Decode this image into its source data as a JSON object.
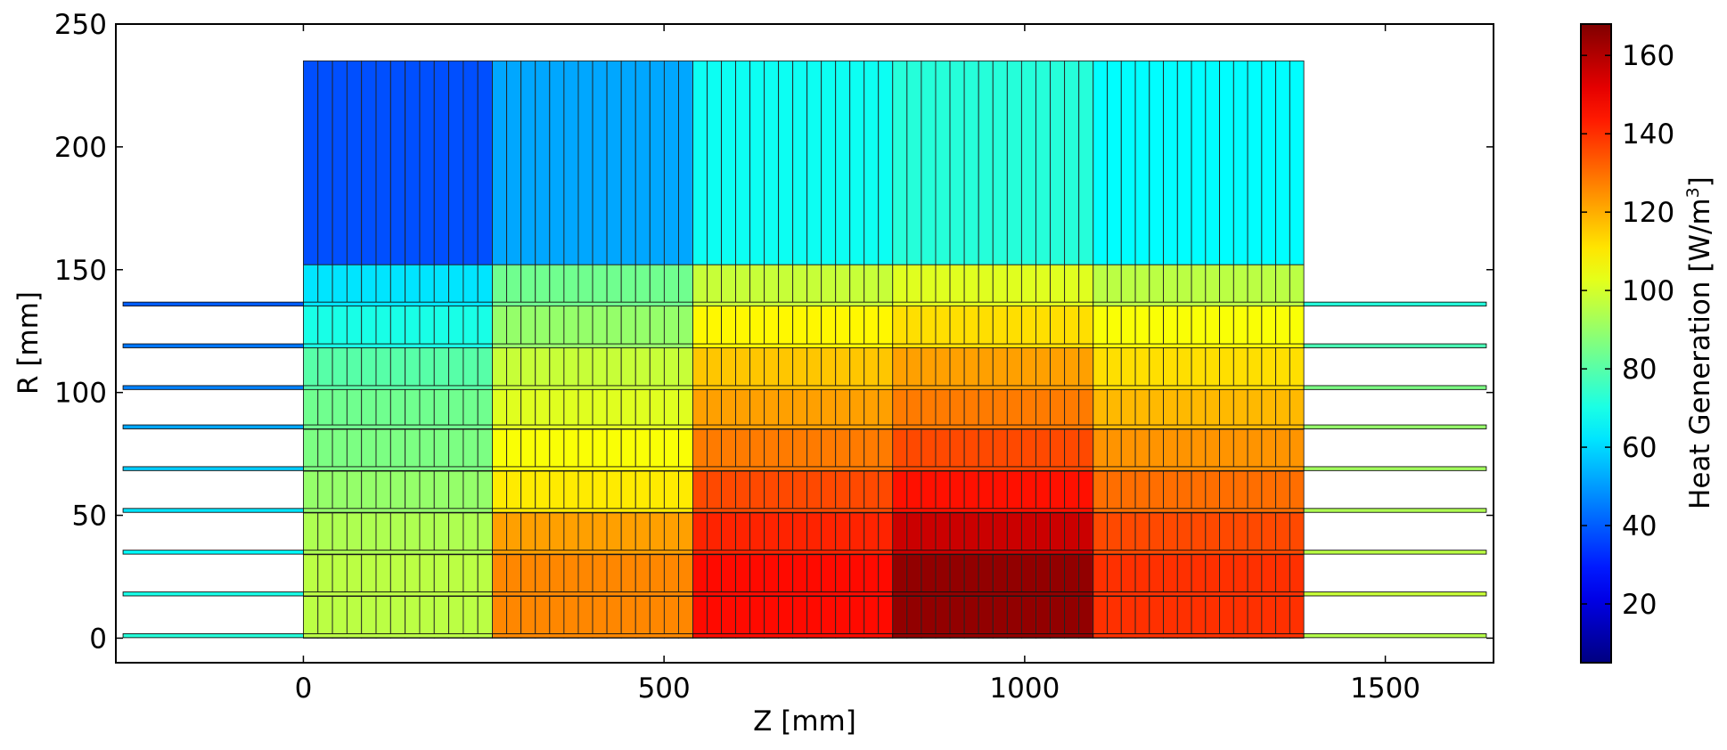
{
  "chart_data": {
    "type": "heatmap",
    "xlabel": "Z [mm]",
    "ylabel": "R [mm]",
    "xlim": [
      -260,
      1650
    ],
    "ylim": [
      -10,
      250
    ],
    "xticks": [
      0,
      500,
      1000,
      1500
    ],
    "yticks": [
      0,
      50,
      100,
      150,
      200,
      250
    ],
    "colorbar": {
      "label": "Heat Generation [W/m",
      "label_superscript": "3",
      "label_suffix": "]",
      "range": [
        5,
        168
      ],
      "ticks": [
        20,
        40,
        60,
        80,
        100,
        120,
        140,
        160
      ],
      "colormap": "jet"
    },
    "core_block": {
      "z_edges": [
        0,
        262,
        540,
        817,
        1095,
        1387
      ],
      "r_edges": [
        0,
        17,
        34,
        51,
        68,
        85,
        102,
        119,
        136,
        152
      ],
      "slices_per_zone": [
        13,
        14,
        14,
        14,
        15
      ],
      "values": [
        [
          96,
          126,
          146,
          165,
          140
        ],
        [
          96,
          126,
          146,
          165,
          140
        ],
        [
          94,
          122,
          142,
          156,
          136
        ],
        [
          90,
          110,
          136,
          145,
          130
        ],
        [
          86,
          106,
          128,
          136,
          124
        ],
        [
          84,
          102,
          122,
          128,
          118
        ],
        [
          80,
          98,
          116,
          122,
          112
        ],
        [
          70,
          90,
          108,
          112,
          106
        ],
        [
          62,
          84,
          98,
          102,
          96
        ]
      ]
    },
    "upper_block": {
      "z_edges": [
        0,
        262,
        540,
        817,
        1095,
        1387
      ],
      "r_edges": [
        152,
        235
      ],
      "slices_per_zone": [
        13,
        14,
        14,
        14,
        15
      ],
      "values": [
        [
          38,
          52,
          68,
          72,
          66
        ]
      ]
    },
    "rods": {
      "z_range": [
        -250,
        1640
      ],
      "r": [
        1,
        18,
        35,
        52,
        69,
        86,
        102,
        119,
        136
      ],
      "half_thickness": 0.8,
      "z_edges": [
        -250,
        0,
        262,
        540,
        817,
        1095,
        1387,
        1640
      ],
      "values": [
        [
          72,
          96,
          126,
          146,
          165,
          140,
          95
        ],
        [
          70,
          96,
          126,
          146,
          165,
          140,
          98
        ],
        [
          66,
          94,
          122,
          142,
          156,
          136,
          96
        ],
        [
          62,
          90,
          110,
          136,
          145,
          130,
          94
        ],
        [
          58,
          86,
          106,
          128,
          136,
          124,
          92
        ],
        [
          52,
          84,
          102,
          122,
          128,
          118,
          90
        ],
        [
          46,
          80,
          98,
          116,
          122,
          112,
          86
        ],
        [
          44,
          70,
          90,
          108,
          112,
          106,
          78
        ],
        [
          40,
          62,
          84,
          98,
          102,
          96,
          72
        ]
      ]
    }
  }
}
